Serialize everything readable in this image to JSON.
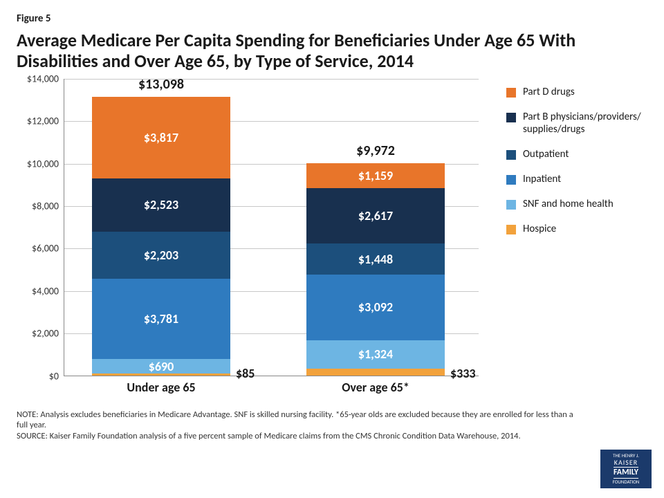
{
  "figure_label": "Figure 5",
  "title": "Average Medicare Per Capita Spending for Beneficiaries Under Age 65 With Disabilities and Over Age 65, by Type of Service, 2014",
  "chart": {
    "type": "stacked-bar",
    "ylim": [
      0,
      14000
    ],
    "ytick_step": 2000,
    "ytick_labels": [
      "$0",
      "$2,000",
      "$4,000",
      "$6,000",
      "$8,000",
      "$10,000",
      "$12,000",
      "$14,000"
    ],
    "background_color": "#ffffff",
    "grid_color": "#c8c8c8",
    "axis_color": "#888888",
    "label_fontsize": 18,
    "value_fontsize": 18,
    "total_fontsize": 20,
    "categories": [
      {
        "name": "Under age 65",
        "total_label": "$13,098",
        "side_label": "$85",
        "segments": [
          {
            "series": "Hospice",
            "value": 85,
            "label": ""
          },
          {
            "series": "SNF and home health",
            "value": 690,
            "label": "$690"
          },
          {
            "series": "Inpatient",
            "value": 3781,
            "label": "$3,781"
          },
          {
            "series": "Outpatient",
            "value": 2203,
            "label": "$2,203"
          },
          {
            "series": "Part B physicians/providers/ supplies/drugs",
            "value": 2523,
            "label": "$2,523"
          },
          {
            "series": "Part D drugs",
            "value": 3817,
            "label": "$3,817"
          }
        ]
      },
      {
        "name": "Over age 65*",
        "total_label": "$9,972",
        "side_label": "$333",
        "segments": [
          {
            "series": "Hospice",
            "value": 333,
            "label": ""
          },
          {
            "series": "SNF and home health",
            "value": 1324,
            "label": "$1,324"
          },
          {
            "series": "Inpatient",
            "value": 3092,
            "label": "$3,092"
          },
          {
            "series": "Outpatient",
            "value": 1448,
            "label": "$1,448"
          },
          {
            "series": "Part B physicians/providers/ supplies/drugs",
            "value": 2617,
            "label": "$2,617"
          },
          {
            "series": "Part D drugs",
            "value": 1159,
            "label": "$1,159"
          }
        ]
      }
    ],
    "series_colors": {
      "Part D drugs": "#e8752a",
      "Part B physicians/providers/ supplies/drugs": "#18304f",
      "Outpatient": "#1c4f7c",
      "Inpatient": "#2f7bbf",
      "SNF and home health": "#6db5e3",
      "Hospice": "#f2a23c"
    },
    "legend_order": [
      "Part D drugs",
      "Part B physicians/providers/ supplies/drugs",
      "Outpatient",
      "Inpatient",
      "SNF and home health",
      "Hospice"
    ]
  },
  "notes": {
    "note": "NOTE: Analysis excludes beneficiaries in Medicare Advantage. SNF is skilled nursing facility. *65-year olds are excluded because they are enrolled for less than a full year.",
    "source": "SOURCE: Kaiser Family Foundation analysis of a five percent sample of Medicare claims from the CMS Chronic Condition Data Warehouse, 2014."
  },
  "logo": {
    "line1": "THE HENRY J.",
    "line2": "KAISER",
    "line3": "FAMILY",
    "line4": "FOUNDATION"
  }
}
